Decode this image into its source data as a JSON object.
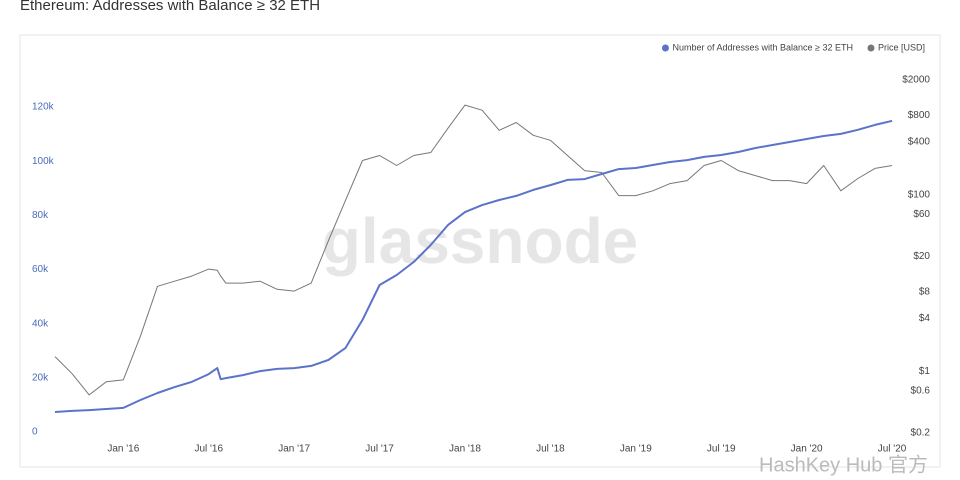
{
  "chart_data": {
    "type": "line",
    "title": "Ethereum: Addresses with Balance ≥ 32 ETH",
    "watermark": "glassnode",
    "credit": "HashKey Hub 官方",
    "legend": "top-right",
    "grid": false,
    "x": [
      2015.6,
      2015.7,
      2015.8,
      2015.9,
      2016.0,
      2016.1,
      2016.2,
      2016.3,
      2016.4,
      2016.5,
      2016.55,
      2016.57,
      2016.6,
      2016.7,
      2016.8,
      2016.9,
      2017.0,
      2017.1,
      2017.2,
      2017.3,
      2017.4,
      2017.5,
      2017.6,
      2017.7,
      2017.8,
      2017.9,
      2018.0,
      2018.1,
      2018.2,
      2018.3,
      2018.4,
      2018.5,
      2018.6,
      2018.7,
      2018.8,
      2018.9,
      2019.0,
      2019.1,
      2019.2,
      2019.3,
      2019.4,
      2019.5,
      2019.6,
      2019.7,
      2019.8,
      2019.9,
      2020.0,
      2020.1,
      2020.2,
      2020.3,
      2020.4,
      2020.5
    ],
    "xlim": [
      2015.6,
      2020.55
    ],
    "xticks": [
      {
        "value": 2016.0,
        "label": "Jan '16"
      },
      {
        "value": 2016.5,
        "label": "Jul '16"
      },
      {
        "value": 2017.0,
        "label": "Jan '17"
      },
      {
        "value": 2017.5,
        "label": "Jul '17"
      },
      {
        "value": 2018.0,
        "label": "Jan '18"
      },
      {
        "value": 2018.5,
        "label": "Jul '18"
      },
      {
        "value": 2019.0,
        "label": "Jan '19"
      },
      {
        "value": 2019.5,
        "label": "Jul '19"
      },
      {
        "value": 2020.0,
        "label": "Jan '20"
      },
      {
        "value": 2020.5,
        "label": "Jul '20"
      }
    ],
    "ylim": [
      0,
      130000
    ],
    "yticks": [
      0,
      {
        "value": 20000,
        "label": "20k"
      },
      {
        "value": 40000,
        "label": "40k"
      },
      {
        "value": 60000,
        "label": "60k"
      },
      {
        "value": 80000,
        "label": "80k"
      },
      {
        "value": 100000,
        "label": "100k"
      },
      {
        "value": 120000,
        "label": "120k"
      }
    ],
    "y2lim": [
      0.2,
      2000
    ],
    "y2log": true,
    "y2ticks": [
      {
        "value": 0.2,
        "label": "$0.2"
      },
      {
        "value": 0.6,
        "label": "$0.6"
      },
      {
        "value": 1,
        "label": "$1"
      },
      {
        "value": 4,
        "label": "$4"
      },
      {
        "value": 8,
        "label": "$8"
      },
      {
        "value": 20,
        "label": "$20"
      },
      {
        "value": 60,
        "label": "$60"
      },
      {
        "value": 100,
        "label": "$100"
      },
      {
        "value": 400,
        "label": "$400"
      },
      {
        "value": 800,
        "label": "$800"
      },
      {
        "value": 2000,
        "label": "$2000"
      }
    ],
    "series": [
      {
        "name": "Number of Addresses with Balance ≥ 32 ETH",
        "color": "#5b73c8",
        "values": [
          7400,
          7800,
          8100,
          8500,
          8900,
          11800,
          14400,
          16600,
          18500,
          21400,
          23600,
          19500,
          19900,
          21000,
          22500,
          23300,
          23600,
          24400,
          26600,
          31000,
          41400,
          54300,
          58000,
          62800,
          69100,
          76400,
          81200,
          83800,
          85700,
          87200,
          89400,
          91200,
          93100,
          93400,
          95300,
          97100,
          97500,
          98600,
          99700,
          100400,
          101600,
          102300,
          103400,
          104900,
          106000,
          107100,
          108200,
          109300,
          110100,
          111600,
          113400,
          114900
        ]
      },
      {
        "name": "Price [USD]",
        "color": "#777777",
        "axis": "y2",
        "values": [
          1.47,
          0.94,
          0.54,
          0.76,
          0.8,
          2.5,
          9.2,
          10.5,
          12,
          14.4,
          14,
          12,
          10,
          10,
          10.5,
          8.5,
          8.1,
          10,
          30,
          86,
          245,
          279,
          215,
          279,
          302,
          567,
          1038,
          910,
          538,
          660,
          473,
          415,
          279,
          188,
          179,
          98,
          98,
          111,
          134,
          145,
          215,
          245,
          188,
          165,
          145,
          145,
          134,
          215,
          111,
          153,
          199,
          215
        ]
      }
    ]
  }
}
